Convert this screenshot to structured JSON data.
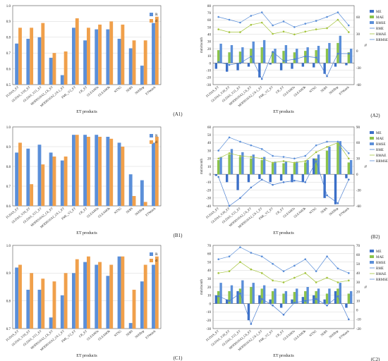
{
  "products": [
    "FLDAS_ET",
    "GLDAS_V20_ET",
    "GLDAS_V21_ET",
    "MODIS16A2_C6_ET",
    "MODIS16A2_C6.1_ET",
    "PML_V2_ET",
    "CR_ET",
    "GLEAM3a",
    "GLEAM3b",
    "NTSG",
    "SEBS",
    "SSEBop",
    "ETWatch"
  ],
  "colors": {
    "R": "#5b8fd9",
    "d": "#f0a04b",
    "ME": "#5b8fd9",
    "MAE": "#8bc34a",
    "RMSE": "#5b8fd9",
    "RME": "#5b8fd9",
    "RMAE": "#a4c43c",
    "RRMSE": "#5b8fd9"
  },
  "chart_data": [
    {
      "panel_label": "(A1)",
      "type": "bar",
      "xlabel": "ET products",
      "categories_ref": "products",
      "ylim": [
        0.5,
        1.0
      ],
      "yticks": [
        "0.5",
        "0.6",
        "0.7",
        "0.8",
        "0.9",
        "1.0"
      ],
      "series": [
        {
          "name": "R",
          "values": [
            0.76,
            0.79,
            0.8,
            0.67,
            0.56,
            0.86,
            0.78,
            0.85,
            0.85,
            0.79,
            0.73,
            0.62,
            0.89
          ]
        },
        {
          "name": "d",
          "values": [
            0.86,
            0.86,
            0.89,
            0.7,
            0.71,
            0.92,
            0.86,
            0.88,
            0.9,
            0.88,
            0.78,
            0.78,
            0.93
          ]
        }
      ]
    },
    {
      "panel_label": "(A2)",
      "type": "bar+line",
      "xlabel": "ET products",
      "ylabel_left": "mm/month",
      "ylabel_right": "%",
      "ylim_left": [
        -30,
        80
      ],
      "ylim_right": [
        -60,
        80
      ],
      "bar_series": [
        {
          "name": "ME",
          "values": [
            -8,
            -12,
            -10,
            -5,
            -20,
            -2,
            -10,
            -8,
            -5,
            -6,
            -15,
            -5,
            -3
          ]
        },
        {
          "name": "MAE",
          "values": [
            18,
            15,
            16,
            20,
            22,
            16,
            17,
            15,
            17,
            18,
            20,
            28,
            15
          ]
        },
        {
          "name": "RMSE",
          "values": [
            27,
            25,
            22,
            30,
            32,
            20,
            25,
            20,
            22,
            24,
            28,
            38,
            20
          ]
        }
      ],
      "line_series": [
        {
          "name": "RME",
          "values": [
            -20,
            -25,
            -22,
            -10,
            -50,
            -2,
            -18,
            -15,
            -10,
            -12,
            -45,
            -5,
            -5
          ]
        },
        {
          "name": "RMAE",
          "values": [
            38,
            33,
            33,
            46,
            50,
            30,
            34,
            29,
            34,
            38,
            40,
            55,
            33
          ]
        },
        {
          "name": "RRMSE",
          "values": [
            60,
            55,
            50,
            62,
            68,
            45,
            52,
            42,
            48,
            53,
            60,
            68,
            45
          ]
        }
      ]
    },
    {
      "panel_label": "(B1)",
      "type": "bar",
      "xlabel": "ET products",
      "categories_ref": "products",
      "ylim": [
        0.6,
        1.0
      ],
      "yticks": [
        "0.6",
        "0.7",
        "0.8",
        "0.9",
        "1.0"
      ],
      "series": [
        {
          "name": "R",
          "values": [
            0.87,
            0.89,
            0.91,
            0.87,
            0.83,
            0.96,
            0.96,
            0.96,
            0.95,
            0.92,
            0.76,
            0.73,
            0.92
          ]
        },
        {
          "name": "d",
          "values": [
            0.92,
            0.71,
            0.81,
            0.85,
            0.85,
            0.96,
            0.95,
            0.95,
            0.94,
            0.9,
            0.65,
            0.62,
            0.95
          ]
        }
      ]
    },
    {
      "panel_label": "(B2)",
      "type": "bar+line",
      "xlabel": "ET products",
      "ylabel_left": "mm/month",
      "ylabel_right": "%",
      "ylim_left": [
        -40,
        60
      ],
      "ylim_right": [
        -60,
        90
      ],
      "bar_series": [
        {
          "name": "ME",
          "values": [
            -2,
            -10,
            -20,
            -10,
            -6,
            -10,
            -8,
            -10,
            -10,
            20,
            -30,
            -38,
            -5
          ]
        },
        {
          "name": "MAE",
          "values": [
            18,
            25,
            22,
            20,
            18,
            14,
            14,
            14,
            15,
            20,
            30,
            40,
            15
          ]
        },
        {
          "name": "RMSE",
          "values": [
            22,
            32,
            28,
            25,
            22,
            16,
            16,
            16,
            18,
            25,
            35,
            42,
            18
          ]
        }
      ],
      "line_series": [
        {
          "name": "RME",
          "values": [
            -5,
            -60,
            -45,
            -25,
            -10,
            -20,
            -15,
            -12,
            -15,
            25,
            -40,
            -55,
            -10
          ]
        },
        {
          "name": "RMAE",
          "values": [
            30,
            40,
            35,
            33,
            30,
            22,
            25,
            22,
            25,
            42,
            52,
            60,
            30
          ]
        },
        {
          "name": "RRMSE",
          "values": [
            45,
            70,
            62,
            55,
            48,
            35,
            33,
            30,
            35,
            55,
            62,
            62,
            40
          ]
        }
      ]
    },
    {
      "panel_label": "(C1)",
      "type": "bar",
      "xlabel": "ET products",
      "categories_ref": "products",
      "ylim": [
        0.7,
        1.0
      ],
      "yticks": [
        "0.7",
        "0.8",
        "0.9",
        "1.0"
      ],
      "series": [
        {
          "name": "R",
          "values": [
            0.92,
            0.84,
            0.84,
            0.74,
            0.82,
            0.9,
            0.94,
            0.93,
            0.89,
            0.96,
            0.72,
            0.87,
            0.93
          ]
        },
        {
          "name": "d",
          "values": [
            0.93,
            0.9,
            0.88,
            0.87,
            0.9,
            0.95,
            0.96,
            0.94,
            0.93,
            0.96,
            0.84,
            0.93,
            0.96
          ]
        }
      ]
    },
    {
      "panel_label": "(C2)",
      "type": "bar+line",
      "xlabel": "ET products",
      "ylabel_left": "mm/month",
      "ylabel_right": "%",
      "ylim_left": [
        -30,
        70
      ],
      "ylim_right": [
        -20,
        70
      ],
      "bar_series": [
        {
          "name": "ME",
          "values": [
            10,
            5,
            15,
            -20,
            10,
            5,
            -5,
            5,
            8,
            10,
            5,
            15,
            -5
          ]
        },
        {
          "name": "MAE",
          "values": [
            15,
            15,
            18,
            20,
            18,
            15,
            12,
            14,
            15,
            15,
            12,
            18,
            12
          ]
        },
        {
          "name": "RMSE",
          "values": [
            25,
            22,
            28,
            25,
            22,
            18,
            15,
            18,
            20,
            18,
            18,
            25,
            15
          ]
        }
      ],
      "line_series": [
        {
          "name": "RME",
          "values": [
            15,
            10,
            18,
            -15,
            12,
            5,
            -5,
            8,
            10,
            12,
            5,
            15,
            -10
          ]
        },
        {
          "name": "RMAE",
          "values": [
            40,
            42,
            52,
            44,
            40,
            32,
            30,
            35,
            40,
            30,
            35,
            30,
            32
          ]
        },
        {
          "name": "RRMSE",
          "values": [
            55,
            58,
            68,
            62,
            58,
            50,
            42,
            48,
            55,
            42,
            58,
            45,
            40
          ]
        }
      ]
    }
  ]
}
